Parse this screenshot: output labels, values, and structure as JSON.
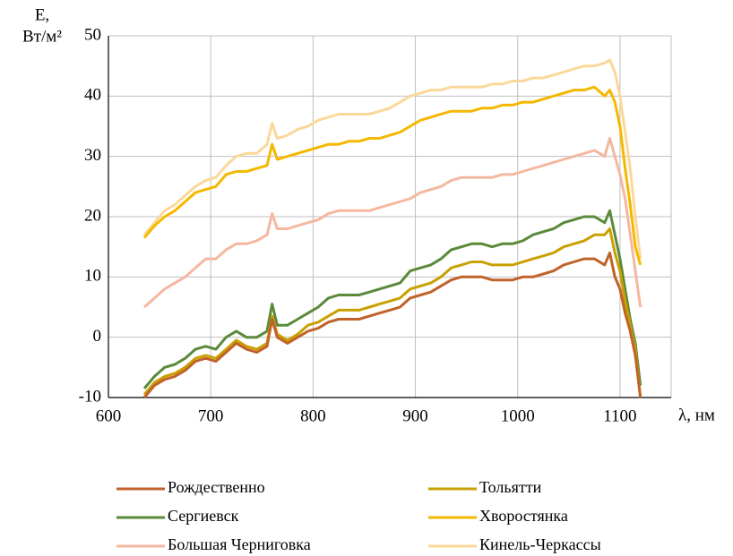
{
  "chart_data": {
    "type": "line",
    "ylabel": [
      "E,",
      "Вт/м²"
    ],
    "xlabel": "λ, нм",
    "x": [
      635,
      645,
      655,
      665,
      675,
      685,
      695,
      705,
      715,
      725,
      735,
      745,
      755,
      760,
      765,
      775,
      785,
      795,
      805,
      815,
      825,
      835,
      845,
      855,
      865,
      875,
      885,
      895,
      905,
      915,
      925,
      935,
      945,
      955,
      965,
      975,
      985,
      995,
      1005,
      1015,
      1025,
      1035,
      1045,
      1055,
      1065,
      1075,
      1085,
      1090,
      1095,
      1100,
      1105,
      1110,
      1115,
      1120
    ],
    "series": [
      {
        "name": "Рождественно",
        "color": "#c0622a",
        "values": [
          -10,
          -8,
          -7,
          -6.5,
          -5.5,
          -4,
          -3.5,
          -4,
          -2.5,
          -1,
          -2,
          -2.5,
          -1.5,
          3,
          0,
          -1,
          0,
          1,
          1.5,
          2.5,
          3,
          3,
          3,
          3.5,
          4,
          4.5,
          5,
          6.5,
          7,
          7.5,
          8.5,
          9.5,
          10,
          10,
          10,
          9.5,
          9.5,
          9.5,
          10,
          10,
          10.5,
          11,
          12,
          12.5,
          13,
          13,
          12,
          14,
          10,
          8,
          4,
          1,
          -3,
          -10
        ]
      },
      {
        "name": "Тольятти",
        "color": "#c9a000",
        "values": [
          -9.5,
          -7.5,
          -6.5,
          -6,
          -5,
          -3.5,
          -3,
          -3.5,
          -2,
          -0.5,
          -1.5,
          -2,
          -1,
          3.5,
          0.5,
          -0.5,
          0.5,
          2,
          2.5,
          3.5,
          4.5,
          4.5,
          4.5,
          5,
          5.5,
          6,
          6.5,
          8,
          8.5,
          9,
          10,
          11.5,
          12,
          12.5,
          12.5,
          12,
          12,
          12,
          12.5,
          13,
          13.5,
          14,
          15,
          15.5,
          16,
          17,
          17,
          18,
          14,
          11,
          6,
          2,
          -2,
          -10
        ]
      },
      {
        "name": "Сергиевск",
        "color": "#5a8a3a",
        "values": [
          -8.5,
          -6.5,
          -5,
          -4.5,
          -3.5,
          -2,
          -1.5,
          -2,
          0,
          1,
          0,
          0,
          1,
          5.5,
          2,
          2,
          3,
          4,
          5,
          6.5,
          7,
          7,
          7,
          7.5,
          8,
          8.5,
          9,
          11,
          11.5,
          12,
          13,
          14.5,
          15,
          15.5,
          15.5,
          15,
          15.5,
          15.5,
          16,
          17,
          17.5,
          18,
          19,
          19.5,
          20,
          20,
          19,
          21,
          17,
          13,
          8,
          3,
          -1,
          -8
        ]
      },
      {
        "name": "Хворостянка",
        "color": "#f5b800",
        "values": [
          16.5,
          18.5,
          20,
          21,
          22.5,
          24,
          24.5,
          25,
          27,
          27.5,
          27.5,
          28,
          28.5,
          32,
          29.5,
          30,
          30.5,
          31,
          31.5,
          32,
          32,
          32.5,
          32.5,
          33,
          33,
          33.5,
          34,
          35,
          36,
          36.5,
          37,
          37.5,
          37.5,
          37.5,
          38,
          38,
          38.5,
          38.5,
          39,
          39,
          39.5,
          40,
          40.5,
          41,
          41,
          41.5,
          40,
          41,
          39,
          35,
          28,
          22,
          15,
          12
        ]
      },
      {
        "name": "Большая Черниговка",
        "color": "#f4b8a0",
        "values": [
          5,
          6.5,
          8,
          9,
          10,
          11.5,
          13,
          13,
          14.5,
          15.5,
          15.5,
          16,
          17,
          20.5,
          18,
          18,
          18.5,
          19,
          19.5,
          20.5,
          21,
          21,
          21,
          21,
          21.5,
          22,
          22.5,
          23,
          24,
          24.5,
          25,
          26,
          26.5,
          26.5,
          26.5,
          26.5,
          27,
          27,
          27.5,
          28,
          28.5,
          29,
          29.5,
          30,
          30.5,
          31,
          30,
          33,
          30,
          27,
          23,
          17,
          11,
          5
        ]
      },
      {
        "name": "Кинель-Черкассы",
        "color": "#fbd89a",
        "values": [
          17,
          19,
          21,
          22,
          23.5,
          25,
          26,
          26.5,
          28.5,
          30,
          30.5,
          30.5,
          32,
          35.5,
          33,
          33.5,
          34.5,
          35,
          36,
          36.5,
          37,
          37,
          37,
          37,
          37.5,
          38,
          39,
          40,
          40.5,
          41,
          41,
          41.5,
          41.5,
          41.5,
          41.5,
          42,
          42,
          42.5,
          42.5,
          43,
          43,
          43.5,
          44,
          44.5,
          45,
          45,
          45.5,
          46,
          44,
          40,
          34,
          28,
          20,
          13
        ]
      }
    ],
    "xlim": [
      600,
      1150
    ],
    "xticks": [
      600,
      700,
      800,
      900,
      1000,
      1100
    ],
    "ylim": [
      -10,
      50
    ],
    "yticks": [
      -10,
      0,
      10,
      20,
      30,
      40,
      50
    ],
    "grid": true
  }
}
